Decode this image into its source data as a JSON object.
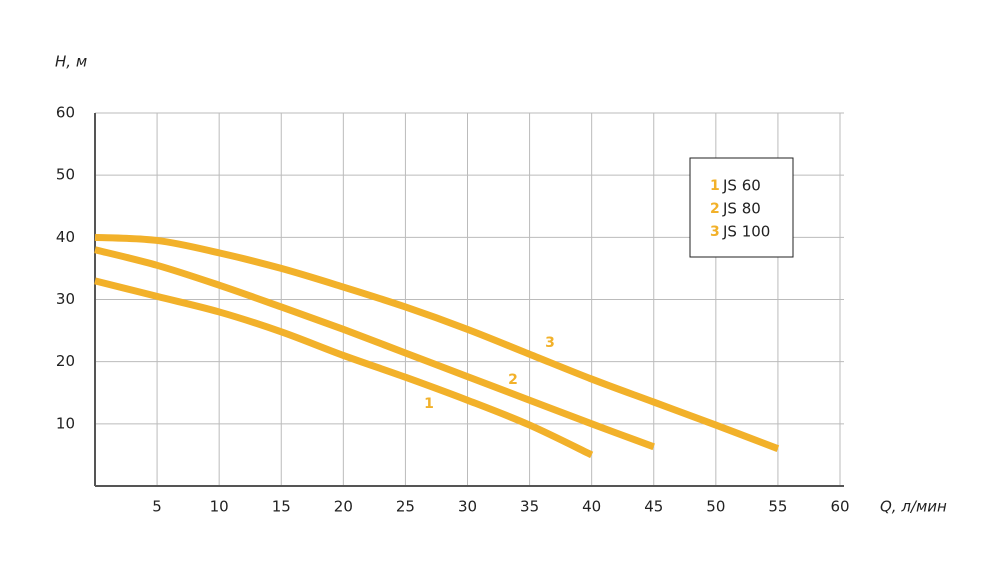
{
  "chart_data": {
    "type": "line",
    "x_label": "Q, л/мин",
    "y_label": "H, м",
    "x": [
      0,
      5,
      10,
      15,
      20,
      25,
      30,
      35,
      40,
      45,
      50,
      55
    ],
    "series": [
      {
        "name": "JS 60",
        "label": "1",
        "color": "#f2b12a",
        "values": [
          33,
          30.5,
          28,
          24.8,
          21,
          17.5,
          13.8,
          9.8,
          5,
          null,
          null,
          null
        ]
      },
      {
        "name": "JS 80",
        "label": "2",
        "color": "#f2b12a",
        "values": [
          38,
          35.5,
          32.3,
          28.8,
          25.2,
          21.4,
          17.6,
          13.8,
          10,
          6.3,
          null,
          null
        ]
      },
      {
        "name": "JS 100",
        "label": "3",
        "color": "#f2b12a",
        "values": [
          40,
          39.5,
          37.5,
          35,
          32,
          28.8,
          25.2,
          21.2,
          17.2,
          13.5,
          9.8,
          6
        ]
      }
    ],
    "xlim": [
      0,
      60
    ],
    "ylim": [
      0,
      60
    ],
    "xticks": [
      5,
      10,
      15,
      20,
      25,
      30,
      35,
      40,
      45,
      50,
      55,
      60
    ],
    "yticks": [
      10,
      20,
      30,
      40,
      50,
      60
    ],
    "grid": true
  }
}
